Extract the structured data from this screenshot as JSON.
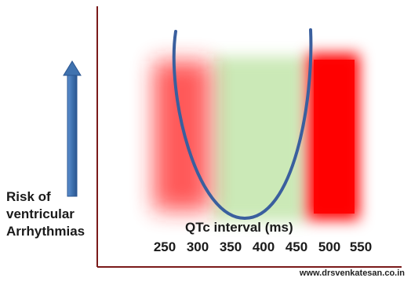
{
  "diagram": {
    "y_label_lines": [
      "Risk of",
      "ventricular",
      "Arrhythmias"
    ],
    "x_title": "QTc  interval (ms)",
    "x_ticks": [
      "250",
      "300",
      "350",
      "400",
      "450",
      "500",
      "550"
    ],
    "footer": "www.drsvenkatesan.co.in",
    "colors": {
      "axes": "#7a1a1a",
      "arrow": "#3f72af",
      "curve": "#3a5f9e",
      "danger_zone": "#ff0000",
      "safe_zone": "#c9e8b4"
    }
  }
}
